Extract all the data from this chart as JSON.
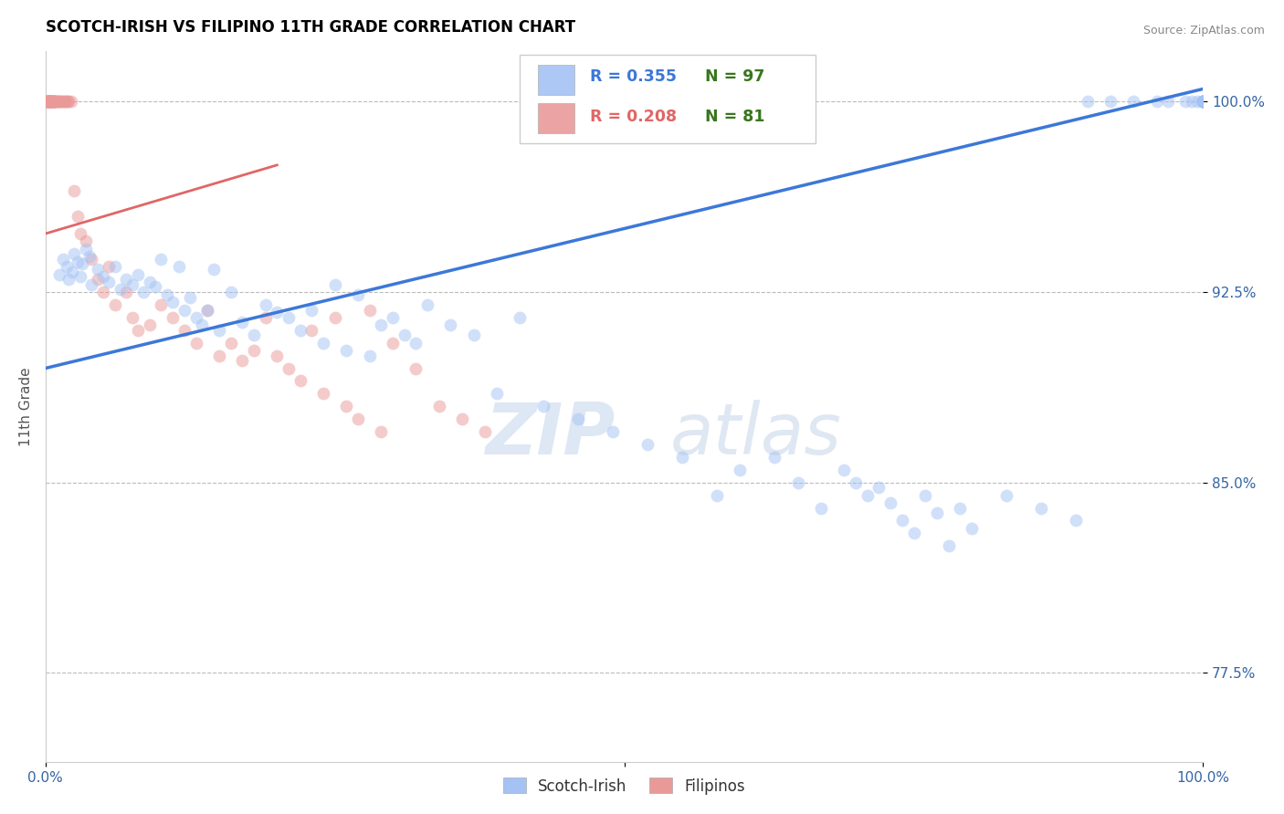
{
  "title": "SCOTCH-IRISH VS FILIPINO 11TH GRADE CORRELATION CHART",
  "source_text": "Source: ZipAtlas.com",
  "ylabel": "11th Grade",
  "xlim": [
    0.0,
    100.0
  ],
  "ylim": [
    74.0,
    102.0
  ],
  "yticks": [
    77.5,
    85.0,
    92.5,
    100.0
  ],
  "ytick_labels": [
    "77.5%",
    "85.0%",
    "92.5%",
    "100.0%"
  ],
  "xtick_positions": [
    0,
    50,
    100
  ],
  "xtick_labels": [
    "0.0%",
    "",
    "100.0%"
  ],
  "blue_scatter_color": "#a4c2f4",
  "pink_scatter_color": "#ea9999",
  "blue_line_color": "#3c78d8",
  "pink_line_color": "#e06666",
  "blue_r": 0.355,
  "blue_n": 97,
  "pink_r": 0.208,
  "pink_n": 81,
  "legend_blue_label": "Scotch-Irish",
  "legend_pink_label": "Filipinos",
  "watermark": "ZIPatlas",
  "title_color": "#000000",
  "title_fontsize": 12,
  "axis_label_color": "#555555",
  "tick_label_color": "#3465a4",
  "source_color": "#888888",
  "grid_color": "#bbbbbb",
  "background_color": "#ffffff",
  "scatter_alpha": 0.5,
  "scatter_size": 100,
  "blue_line_x0": 0.0,
  "blue_line_x1": 100.0,
  "blue_line_y0": 89.5,
  "blue_line_y1": 100.5,
  "pink_line_x0": 0.0,
  "pink_line_x1": 20.0,
  "pink_line_y0": 94.8,
  "pink_line_y1": 97.5,
  "blue_x": [
    1.2,
    1.5,
    1.8,
    2.0,
    2.3,
    2.5,
    2.8,
    3.0,
    3.2,
    3.5,
    3.8,
    4.0,
    4.5,
    5.0,
    5.5,
    6.0,
    6.5,
    7.0,
    7.5,
    8.0,
    8.5,
    9.0,
    9.5,
    10.0,
    10.5,
    11.0,
    11.5,
    12.0,
    12.5,
    13.0,
    13.5,
    14.0,
    14.5,
    15.0,
    16.0,
    17.0,
    18.0,
    19.0,
    20.0,
    21.0,
    22.0,
    23.0,
    24.0,
    25.0,
    26.0,
    27.0,
    28.0,
    29.0,
    30.0,
    31.0,
    32.0,
    33.0,
    35.0,
    37.0,
    39.0,
    41.0,
    43.0,
    46.0,
    49.0,
    52.0,
    55.0,
    58.0,
    60.0,
    63.0,
    65.0,
    67.0,
    69.0,
    70.0,
    71.0,
    72.0,
    73.0,
    74.0,
    75.0,
    76.0,
    77.0,
    78.0,
    79.0,
    80.0,
    83.0,
    86.0,
    89.0,
    90.0,
    92.0,
    94.0,
    96.0,
    97.0,
    98.5,
    99.0,
    99.5,
    100.0,
    100.0,
    100.0,
    100.0,
    100.0,
    100.0,
    100.0,
    100.0
  ],
  "blue_y": [
    93.2,
    93.8,
    93.5,
    93.0,
    93.3,
    94.0,
    93.7,
    93.1,
    93.6,
    94.2,
    93.9,
    92.8,
    93.4,
    93.1,
    92.9,
    93.5,
    92.6,
    93.0,
    92.8,
    93.2,
    92.5,
    92.9,
    92.7,
    93.8,
    92.4,
    92.1,
    93.5,
    91.8,
    92.3,
    91.5,
    91.2,
    91.8,
    93.4,
    91.0,
    92.5,
    91.3,
    90.8,
    92.0,
    91.7,
    91.5,
    91.0,
    91.8,
    90.5,
    92.8,
    90.2,
    92.4,
    90.0,
    91.2,
    91.5,
    90.8,
    90.5,
    92.0,
    91.2,
    90.8,
    88.5,
    91.5,
    88.0,
    87.5,
    87.0,
    86.5,
    86.0,
    84.5,
    85.5,
    86.0,
    85.0,
    84.0,
    85.5,
    85.0,
    84.5,
    84.8,
    84.2,
    83.5,
    83.0,
    84.5,
    83.8,
    82.5,
    84.0,
    83.2,
    84.5,
    84.0,
    83.5,
    100.0,
    100.0,
    100.0,
    100.0,
    100.0,
    100.0,
    100.0,
    100.0,
    100.0,
    100.0,
    100.0,
    100.0,
    100.0,
    100.0,
    100.0,
    100.0
  ],
  "pink_x": [
    0.05,
    0.1,
    0.12,
    0.15,
    0.18,
    0.2,
    0.22,
    0.25,
    0.28,
    0.3,
    0.32,
    0.35,
    0.38,
    0.4,
    0.42,
    0.45,
    0.48,
    0.5,
    0.52,
    0.55,
    0.58,
    0.6,
    0.62,
    0.65,
    0.7,
    0.72,
    0.75,
    0.8,
    0.85,
    0.9,
    0.95,
    1.0,
    1.1,
    1.2,
    1.3,
    1.4,
    1.5,
    1.6,
    1.7,
    1.8,
    1.9,
    2.0,
    2.2,
    2.5,
    2.8,
    3.0,
    3.5,
    4.0,
    4.5,
    5.0,
    5.5,
    6.0,
    7.0,
    7.5,
    8.0,
    9.0,
    10.0,
    11.0,
    12.0,
    13.0,
    14.0,
    15.0,
    16.0,
    17.0,
    18.0,
    19.0,
    20.0,
    21.0,
    22.0,
    23.0,
    24.0,
    25.0,
    26.0,
    27.0,
    28.0,
    29.0,
    30.0,
    32.0,
    34.0,
    36.0,
    38.0
  ],
  "pink_y": [
    100.0,
    100.0,
    100.0,
    100.0,
    100.0,
    100.0,
    100.0,
    100.0,
    100.0,
    100.0,
    100.0,
    100.0,
    100.0,
    100.0,
    100.0,
    100.0,
    100.0,
    100.0,
    100.0,
    100.0,
    100.0,
    100.0,
    100.0,
    100.0,
    100.0,
    100.0,
    100.0,
    100.0,
    100.0,
    100.0,
    100.0,
    100.0,
    100.0,
    100.0,
    100.0,
    100.0,
    100.0,
    100.0,
    100.0,
    100.0,
    100.0,
    100.0,
    100.0,
    96.5,
    95.5,
    94.8,
    94.5,
    93.8,
    93.0,
    92.5,
    93.5,
    92.0,
    92.5,
    91.5,
    91.0,
    91.2,
    92.0,
    91.5,
    91.0,
    90.5,
    91.8,
    90.0,
    90.5,
    89.8,
    90.2,
    91.5,
    90.0,
    89.5,
    89.0,
    91.0,
    88.5,
    91.5,
    88.0,
    87.5,
    91.8,
    87.0,
    90.5,
    89.5,
    88.0,
    87.5,
    87.0
  ]
}
